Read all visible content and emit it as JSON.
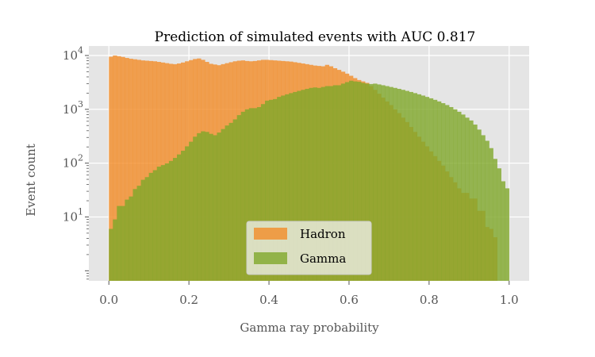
{
  "chart_data": {
    "type": "histogram",
    "title": "Prediction of simulated events with AUC 0.817",
    "xlabel": "Gamma ray probability",
    "ylabel": "Event count",
    "xlim": [
      -0.05,
      1.05
    ],
    "ylim": [
      0.65,
      15000
    ],
    "yscale": "log",
    "grid": true,
    "legend_position": "bottom-center",
    "x_ticks": [
      {
        "value": 0.0,
        "label": "0.0"
      },
      {
        "value": 0.2,
        "label": "0.2"
      },
      {
        "value": 0.4,
        "label": "0.4"
      },
      {
        "value": 0.6,
        "label": "0.6"
      },
      {
        "value": 0.8,
        "label": "0.8"
      },
      {
        "value": 1.0,
        "label": "1.0"
      }
    ],
    "y_ticks": [
      {
        "value": 10,
        "base": "10",
        "exp": "1"
      },
      {
        "value": 100,
        "base": "10",
        "exp": "2"
      },
      {
        "value": 1000,
        "base": "10",
        "exp": "3"
      },
      {
        "value": 10000,
        "base": "10",
        "exp": "4"
      }
    ],
    "bin_edges_range": [
      0,
      1
    ],
    "num_bins": 100,
    "series": [
      {
        "name": "Hadron",
        "color": "#f28c28",
        "opacity": 0.8,
        "values": [
          9500,
          10000,
          9700,
          9400,
          9000,
          8700,
          8500,
          8300,
          8100,
          8000,
          7900,
          7800,
          7600,
          7400,
          7200,
          7000,
          6900,
          7100,
          7400,
          7800,
          8200,
          8600,
          8800,
          8300,
          7600,
          7000,
          6800,
          6600,
          6900,
          7200,
          7500,
          7800,
          8000,
          8100,
          7900,
          7800,
          7900,
          8100,
          8300,
          8300,
          8200,
          8100,
          8000,
          7900,
          7800,
          7700,
          7500,
          7300,
          7100,
          6900,
          6700,
          6500,
          6400,
          6300,
          6700,
          6300,
          5800,
          5400,
          5000,
          4600,
          4200,
          3800,
          3500,
          3300,
          3100,
          2700,
          2300,
          1950,
          1650,
          1400,
          1200,
          1000,
          850,
          700,
          580,
          470,
          380,
          310,
          250,
          205,
          165,
          135,
          110,
          90,
          70,
          55,
          44,
          34,
          28,
          28,
          22,
          22,
          13,
          13,
          6.5,
          6,
          4.2,
          0,
          0,
          0
        ]
      },
      {
        "name": "Gamma",
        "color": "#7fa82a",
        "opacity": 0.8,
        "values": [
          6,
          9,
          16,
          16,
          21,
          24,
          33,
          38,
          49,
          55,
          66,
          74,
          86,
          92,
          99,
          110,
          125,
          145,
          170,
          205,
          250,
          310,
          360,
          390,
          380,
          350,
          330,
          370,
          430,
          500,
          560,
          650,
          780,
          900,
          1000,
          1050,
          1050,
          1100,
          1250,
          1450,
          1500,
          1550,
          1700,
          1800,
          1900,
          2000,
          2100,
          2200,
          2300,
          2400,
          2500,
          2550,
          2500,
          2600,
          2700,
          2700,
          2800,
          2800,
          3000,
          3200,
          3400,
          3300,
          3250,
          3100,
          3000,
          2950,
          3000,
          2900,
          2800,
          2700,
          2600,
          2500,
          2400,
          2300,
          2200,
          2100,
          2000,
          1900,
          1800,
          1700,
          1600,
          1500,
          1400,
          1300,
          1200,
          1100,
          1000,
          900,
          800,
          700,
          620,
          520,
          420,
          330,
          260,
          190,
          120,
          80,
          46,
          34
        ]
      }
    ]
  }
}
